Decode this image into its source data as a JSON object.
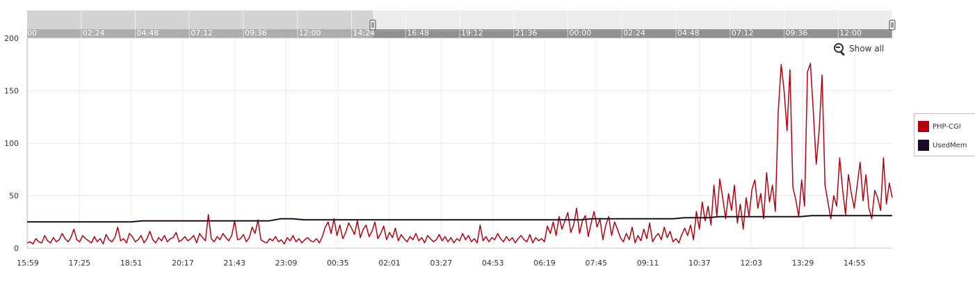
{
  "chart_data": {
    "type": "line",
    "y_ticks": [
      0,
      50,
      100,
      150,
      200
    ],
    "ylim": [
      0,
      200
    ],
    "x_ticks": [
      "15:59",
      "17:25",
      "18:51",
      "20:17",
      "21:43",
      "23:09",
      "00:35",
      "02:01",
      "03:27",
      "04:53",
      "06:19",
      "07:45",
      "09:11",
      "10:37",
      "12:03",
      "13:29",
      "14:55"
    ],
    "grid": true,
    "legend_position": "right",
    "series": [
      {
        "name": "PHP-CGI",
        "color": "#b3000f",
        "values": [
          5,
          6,
          4,
          9,
          6,
          5,
          12,
          7,
          5,
          10,
          6,
          8,
          14,
          9,
          6,
          10,
          18,
          8,
          6,
          12,
          9,
          7,
          5,
          11,
          6,
          9,
          4,
          13,
          8,
          6,
          10,
          20,
          7,
          9,
          5,
          14,
          11,
          6,
          8,
          12,
          5,
          9,
          16,
          8,
          5,
          10,
          7,
          12,
          6,
          9,
          10,
          15,
          6,
          8,
          11,
          7,
          9,
          12,
          5,
          14,
          10,
          7,
          32,
          9,
          6,
          11,
          8,
          14,
          10,
          7,
          12,
          26,
          8,
          9,
          13,
          6,
          10,
          20,
          14,
          27,
          8,
          6,
          5,
          9,
          7,
          11,
          6,
          8,
          4,
          10,
          7,
          12,
          6,
          9,
          5,
          8,
          10,
          7,
          6,
          9,
          5,
          11,
          20,
          25,
          14,
          28,
          12,
          22,
          9,
          15,
          24,
          19,
          13,
          26,
          10,
          18,
          22,
          11,
          16,
          25,
          9,
          14,
          21,
          8,
          15,
          10,
          19,
          7,
          13,
          9,
          6,
          11,
          8,
          14,
          7,
          10,
          5,
          12,
          9,
          6,
          8,
          13,
          7,
          11,
          6,
          10,
          5,
          9,
          7,
          14,
          8,
          12,
          6,
          9,
          5,
          22,
          7,
          11,
          6,
          10,
          8,
          14,
          9,
          6,
          11,
          7,
          10,
          5,
          9,
          12,
          8,
          6,
          13,
          5,
          10,
          7,
          9,
          6,
          21,
          14,
          25,
          12,
          30,
          18,
          26,
          34,
          15,
          22,
          38,
          14,
          26,
          31,
          11,
          24,
          35,
          20,
          28,
          8,
          22,
          30,
          12,
          25,
          18,
          10,
          6,
          14,
          8,
          20,
          5,
          12,
          7,
          18,
          9,
          24,
          6,
          11,
          14,
          8,
          20,
          10,
          16,
          6,
          9,
          5,
          13,
          19,
          12,
          22,
          8,
          35,
          18,
          44,
          26,
          40,
          22,
          60,
          30,
          66,
          48,
          28,
          52,
          36,
          60,
          24,
          42,
          18,
          48,
          30,
          56,
          65,
          38,
          52,
          28,
          72,
          44,
          60,
          35,
          130,
          175,
          150,
          112,
          170,
          58,
          46,
          30,
          65,
          40,
          168,
          176,
          130,
          80,
          112,
          165,
          60,
          44,
          28,
          50,
          40,
          86,
          56,
          32,
          70,
          52,
          38,
          60,
          82,
          45,
          70,
          38,
          28,
          55,
          48,
          36,
          86,
          42,
          62,
          48
        ]
      },
      {
        "name": "UsedMem",
        "color": "#1a0a24",
        "values": [
          25,
          25,
          25,
          25,
          25,
          25,
          25,
          25,
          25,
          25,
          26,
          26,
          26,
          26,
          26,
          26,
          26,
          26,
          26,
          26,
          26,
          26,
          28,
          28,
          27,
          27,
          27,
          27,
          27,
          27,
          27,
          27,
          27,
          27,
          27,
          27,
          27,
          27,
          27,
          27,
          27,
          27,
          27,
          27,
          27,
          27,
          27,
          27,
          27,
          28,
          28,
          28,
          28,
          28,
          28,
          28,
          28,
          29,
          29,
          29,
          30,
          30,
          30,
          30,
          30,
          30,
          30,
          30,
          31,
          31,
          31,
          31,
          31,
          31,
          31,
          31
        ]
      }
    ],
    "navigator_ticks": [
      "00",
      "02:24",
      "04:48",
      "07:12",
      "09:36",
      "12:00",
      "14:24",
      "16:48",
      "19:12",
      "21:36",
      "00:00",
      "02:24",
      "04:48",
      "07:12",
      "09:36",
      "12:00",
      "14:24"
    ]
  },
  "controls": {
    "show_all_label": "Show all"
  }
}
